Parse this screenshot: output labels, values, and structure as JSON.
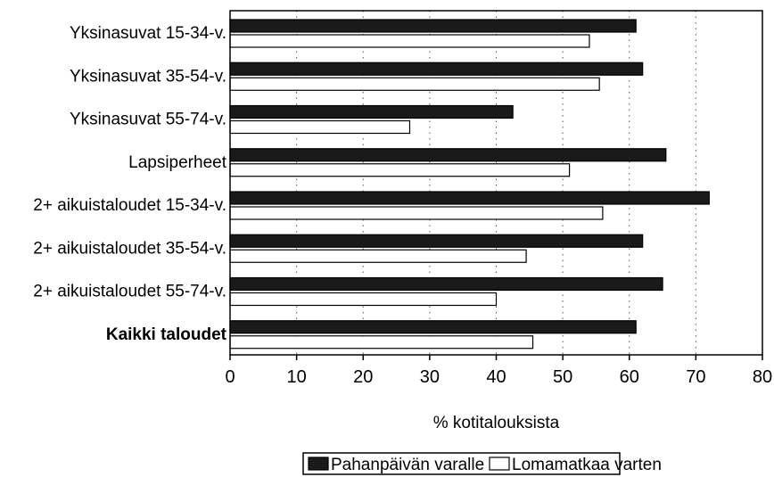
{
  "chart_data": {
    "type": "bar",
    "orientation": "horizontal",
    "categories": [
      "Yksinasuvat 15-34-v.",
      "Yksinasuvat 35-54-v.",
      "Yksinasuvat 55-74-v.",
      "Lapsiperheet",
      "2+ aikuistaloudet 15-34-v.",
      "2+ aikuistaloudet 35-54-v.",
      "2+ aikuistaloudet 55-74-v.",
      "Kaikki taloudet"
    ],
    "bold_categories": [
      "Kaikki taloudet"
    ],
    "series": [
      {
        "name": "Pahanpäivän varalle",
        "color": "#1a1a1a",
        "values": [
          61,
          62,
          42.5,
          65.5,
          72,
          62,
          65,
          61
        ]
      },
      {
        "name": "Lomamatkaa varten",
        "color": "#ffffff",
        "values": [
          54,
          55.5,
          27,
          51,
          56,
          44.5,
          40,
          45.5
        ]
      }
    ],
    "xlabel": "% kotitalouksista",
    "ylabel": "",
    "xlim": [
      0,
      80
    ],
    "xticks": [
      0,
      10,
      20,
      30,
      40,
      50,
      60,
      70,
      80
    ],
    "grid": "vertical dotted",
    "legend_position": "bottom"
  }
}
